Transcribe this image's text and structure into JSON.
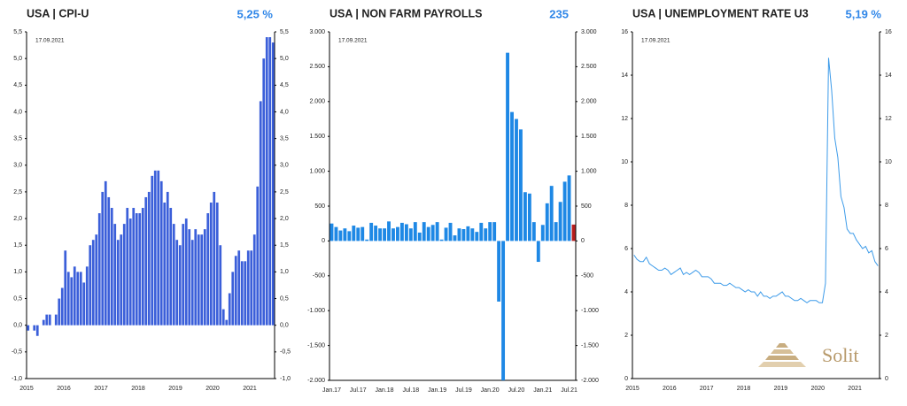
{
  "chart_data": [
    {
      "type": "bar",
      "title": "USA | CPI-U",
      "headline": "5,25 %",
      "date": "17.09.2021",
      "color": "#3b5fd9",
      "categories": [
        "2015",
        null,
        null,
        null,
        null,
        null,
        null,
        null,
        null,
        null,
        null,
        null,
        "2016",
        null,
        null,
        null,
        null,
        null,
        null,
        null,
        null,
        null,
        null,
        null,
        "2017",
        null,
        null,
        null,
        null,
        null,
        null,
        null,
        null,
        null,
        null,
        null,
        "2018",
        null,
        null,
        null,
        null,
        null,
        null,
        null,
        null,
        null,
        null,
        null,
        "2019",
        null,
        null,
        null,
        null,
        null,
        null,
        null,
        null,
        null,
        null,
        null,
        "2020",
        null,
        null,
        null,
        null,
        null,
        null,
        null,
        null,
        null,
        null,
        null,
        "2021",
        null,
        null,
        null,
        null,
        null,
        null,
        null
      ],
      "values": [
        -0.1,
        0.0,
        -0.1,
        -0.2,
        0.0,
        0.1,
        0.2,
        0.2,
        0.0,
        0.2,
        0.5,
        0.7,
        1.4,
        1.0,
        0.9,
        1.1,
        1.0,
        1.0,
        0.8,
        1.1,
        1.5,
        1.6,
        1.7,
        2.1,
        2.5,
        2.7,
        2.4,
        2.2,
        1.9,
        1.6,
        1.7,
        1.9,
        2.2,
        2.0,
        2.2,
        2.1,
        2.1,
        2.2,
        2.4,
        2.5,
        2.8,
        2.9,
        2.9,
        2.7,
        2.3,
        2.5,
        2.2,
        1.9,
        1.6,
        1.5,
        1.9,
        2.0,
        1.8,
        1.6,
        1.8,
        1.7,
        1.7,
        1.8,
        2.1,
        2.3,
        2.5,
        2.3,
        1.5,
        0.3,
        0.1,
        0.6,
        1.0,
        1.3,
        1.4,
        1.2,
        1.2,
        1.4,
        1.4,
        1.7,
        2.6,
        4.2,
        5.0,
        5.4,
        5.4,
        5.3
      ],
      "ylim": [
        -1.0,
        5.5
      ],
      "yticks": [
        {
          "value": -1.0,
          "label": "-1,0"
        },
        {
          "value": -0.5,
          "label": "-0,5"
        },
        {
          "value": 0.0,
          "label": "0,0"
        },
        {
          "value": 0.5,
          "label": "0,5"
        },
        {
          "value": 1.0,
          "label": "1,0"
        },
        {
          "value": 1.5,
          "label": "1,5"
        },
        {
          "value": 2.0,
          "label": "2,0"
        },
        {
          "value": 2.5,
          "label": "2,5"
        },
        {
          "value": 3.0,
          "label": "3,0"
        },
        {
          "value": 3.5,
          "label": "3,5"
        },
        {
          "value": 4.0,
          "label": "4,0"
        },
        {
          "value": 4.5,
          "label": "4,5"
        },
        {
          "value": 5.0,
          "label": "5,0"
        },
        {
          "value": 5.5,
          "label": "5,5"
        }
      ]
    },
    {
      "type": "bar",
      "title": "USA | NON FARM PAYROLLS",
      "headline": "235",
      "date": "17.09.2021",
      "categories": [
        "Jan.17",
        null,
        null,
        null,
        null,
        null,
        "Jul.17",
        null,
        null,
        null,
        null,
        null,
        "Jan.18",
        null,
        null,
        null,
        null,
        null,
        "Jul.18",
        null,
        null,
        null,
        null,
        null,
        "Jan.19",
        null,
        null,
        null,
        null,
        null,
        "Jul.19",
        null,
        null,
        null,
        null,
        null,
        "Jan.20",
        null,
        null,
        null,
        null,
        null,
        "Jul.20",
        null,
        null,
        null,
        null,
        null,
        "Jan.21",
        null,
        null,
        null,
        null,
        null,
        "Jul.21",
        null
      ],
      "values": [
        250,
        200,
        150,
        180,
        140,
        220,
        190,
        200,
        20,
        260,
        220,
        180,
        180,
        280,
        180,
        200,
        260,
        240,
        180,
        270,
        120,
        270,
        200,
        230,
        270,
        20,
        190,
        260,
        80,
        180,
        170,
        210,
        180,
        130,
        260,
        180,
        270,
        270,
        -870,
        -2000,
        2700,
        1850,
        1750,
        1600,
        700,
        680,
        270,
        -300,
        230,
        540,
        790,
        270,
        560,
        850,
        940,
        235
      ],
      "colors": [
        "#1e88e5",
        "#1e88e5",
        "#1e88e5",
        "#1e88e5",
        "#1e88e5",
        "#1e88e5",
        "#1e88e5",
        "#1e88e5",
        "#1e88e5",
        "#1e88e5",
        "#1e88e5",
        "#1e88e5",
        "#1e88e5",
        "#1e88e5",
        "#1e88e5",
        "#1e88e5",
        "#1e88e5",
        "#1e88e5",
        "#1e88e5",
        "#1e88e5",
        "#1e88e5",
        "#1e88e5",
        "#1e88e5",
        "#1e88e5",
        "#1e88e5",
        "#1e88e5",
        "#1e88e5",
        "#1e88e5",
        "#1e88e5",
        "#1e88e5",
        "#1e88e5",
        "#1e88e5",
        "#1e88e5",
        "#1e88e5",
        "#1e88e5",
        "#1e88e5",
        "#1e88e5",
        "#1e88e5",
        "#1e88e5",
        "#1e88e5",
        "#1e88e5",
        "#1e88e5",
        "#1e88e5",
        "#1e88e5",
        "#1e88e5",
        "#1e88e5",
        "#1e88e5",
        "#1e88e5",
        "#1e88e5",
        "#1e88e5",
        "#1e88e5",
        "#1e88e5",
        "#1e88e5",
        "#1e88e5",
        "#1e88e5",
        "#b71c1c"
      ],
      "ylim": [
        -2000,
        3000
      ],
      "yticks": [
        {
          "value": -2000,
          "label": "-2.000"
        },
        {
          "value": -1500,
          "label": "-1.500"
        },
        {
          "value": -1000,
          "label": "-1.000"
        },
        -500,
        0,
        500,
        {
          "value": 1000,
          "label": "1.000"
        },
        {
          "value": 1500,
          "label": "1.500"
        },
        {
          "value": 2000,
          "label": "2.000"
        },
        {
          "value": 2500,
          "label": "2.500"
        },
        {
          "value": 3000,
          "label": "3.000"
        }
      ]
    },
    {
      "type": "line",
      "title": "USA | UNEMPLOYMENT RATE U3",
      "headline": "5,19 %",
      "date": "17.09.2021",
      "color": "#3d9be9",
      "logo": "Solit",
      "categories": [
        "2015",
        null,
        null,
        null,
        null,
        null,
        null,
        null,
        null,
        null,
        null,
        null,
        "2016",
        null,
        null,
        null,
        null,
        null,
        null,
        null,
        null,
        null,
        null,
        null,
        "2017",
        null,
        null,
        null,
        null,
        null,
        null,
        null,
        null,
        null,
        null,
        null,
        "2018",
        null,
        null,
        null,
        null,
        null,
        null,
        null,
        null,
        null,
        null,
        null,
        "2019",
        null,
        null,
        null,
        null,
        null,
        null,
        null,
        null,
        null,
        null,
        null,
        "2020",
        null,
        null,
        null,
        null,
        null,
        null,
        null,
        null,
        null,
        null,
        null,
        "2021",
        null,
        null,
        null,
        null,
        null,
        null,
        null
      ],
      "values": [
        5.7,
        5.5,
        5.4,
        5.4,
        5.6,
        5.3,
        5.2,
        5.1,
        5.0,
        5.0,
        5.1,
        5.0,
        4.8,
        4.9,
        5.0,
        5.1,
        4.8,
        4.9,
        4.8,
        4.9,
        5.0,
        4.9,
        4.7,
        4.7,
        4.7,
        4.6,
        4.4,
        4.4,
        4.4,
        4.3,
        4.3,
        4.4,
        4.3,
        4.2,
        4.2,
        4.1,
        4.0,
        4.1,
        4.0,
        4.0,
        3.8,
        4.0,
        3.8,
        3.8,
        3.7,
        3.8,
        3.8,
        3.9,
        4.0,
        3.8,
        3.8,
        3.7,
        3.6,
        3.6,
        3.7,
        3.6,
        3.5,
        3.6,
        3.6,
        3.6,
        3.5,
        3.5,
        4.4,
        14.8,
        13.3,
        11.1,
        10.2,
        8.4,
        7.9,
        6.9,
        6.7,
        6.7,
        6.4,
        6.2,
        6.0,
        6.1,
        5.8,
        5.9,
        5.4,
        5.2
      ],
      "ylim": [
        0,
        16
      ],
      "yticks": [
        0,
        2,
        4,
        6,
        8,
        10,
        12,
        14,
        16
      ]
    }
  ]
}
